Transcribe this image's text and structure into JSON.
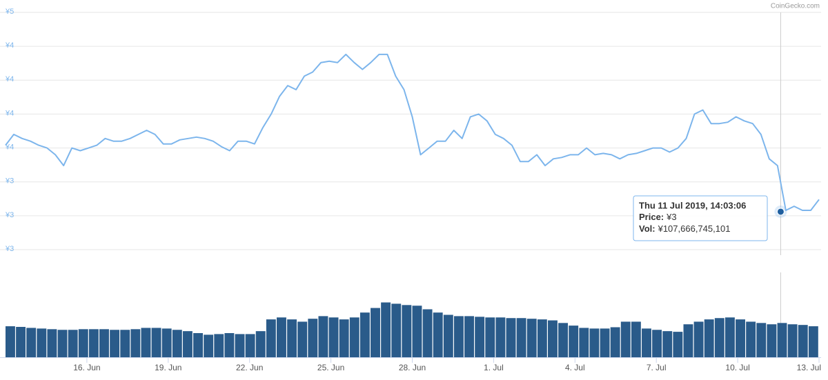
{
  "watermark": "CoinGecko.com",
  "chart_data": [
    {
      "type": "line",
      "color": "#7cb5ec",
      "grid": true,
      "xlim": [
        "2019-06-13T00:00:00",
        "2019-07-13T00:00:00"
      ],
      "ylim": [
        2.75,
        4.5
      ],
      "yticks": [
        {
          "value": 4.5,
          "label": "¥5"
        },
        {
          "value": 4.25,
          "label": "¥4"
        },
        {
          "value": 4.0,
          "label": "¥4"
        },
        {
          "value": 3.75,
          "label": "¥4"
        },
        {
          "value": 3.5,
          "label": "¥4"
        },
        {
          "value": 3.25,
          "label": "¥3"
        },
        {
          "value": 3.0,
          "label": "¥3"
        },
        {
          "value": 2.75,
          "label": "¥3"
        }
      ],
      "values": [
        3.52,
        3.6,
        3.57,
        3.55,
        3.52,
        3.5,
        3.45,
        3.37,
        3.5,
        3.48,
        3.5,
        3.52,
        3.57,
        3.55,
        3.55,
        3.57,
        3.6,
        3.63,
        3.6,
        3.53,
        3.53,
        3.56,
        3.57,
        3.58,
        3.57,
        3.55,
        3.51,
        3.48,
        3.55,
        3.55,
        3.53,
        3.65,
        3.75,
        3.88,
        3.96,
        3.93,
        4.03,
        4.06,
        4.13,
        4.14,
        4.13,
        4.19,
        4.13,
        4.08,
        4.13,
        4.19,
        4.19,
        4.03,
        3.93,
        3.73,
        3.45,
        3.5,
        3.55,
        3.55,
        3.63,
        3.57,
        3.73,
        3.75,
        3.7,
        3.6,
        3.57,
        3.52,
        3.4,
        3.4,
        3.45,
        3.37,
        3.42,
        3.43,
        3.45,
        3.45,
        3.5,
        3.45,
        3.46,
        3.45,
        3.42,
        3.45,
        3.46,
        3.48,
        3.5,
        3.5,
        3.47,
        3.5,
        3.57,
        3.75,
        3.78,
        3.68,
        3.68,
        3.69,
        3.73,
        3.7,
        3.68,
        3.6,
        3.42,
        3.37,
        3.04,
        3.07,
        3.04,
        3.04,
        3.12
      ],
      "hover": {
        "x": "2019-07-11T14:03:06",
        "value": 3.03
      },
      "tooltip": {
        "date": "Thu 11 Jul 2019, 14:03:06",
        "price_label": "Price:",
        "price": "¥3",
        "vol_label": "Vol:",
        "vol": "¥107,666,745,101"
      }
    },
    {
      "type": "bar",
      "color": "#2a5b8a",
      "xlim": [
        "2019-06-13T00:00:00",
        "2019-07-13T00:00:00"
      ],
      "ylim": [
        0,
        260000000000.0
      ],
      "xticks": [
        {
          "value": "2019-06-16T00:00:00",
          "label": "16. Jun"
        },
        {
          "value": "2019-06-19T00:00:00",
          "label": "19. Jun"
        },
        {
          "value": "2019-06-22T00:00:00",
          "label": "22. Jun"
        },
        {
          "value": "2019-06-25T00:00:00",
          "label": "25. Jun"
        },
        {
          "value": "2019-06-28T00:00:00",
          "label": "28. Jun"
        },
        {
          "value": "2019-07-01T00:00:00",
          "label": "1. Jul"
        },
        {
          "value": "2019-07-04T00:00:00",
          "label": "4. Jul"
        },
        {
          "value": "2019-07-07T00:00:00",
          "label": "7. Jul"
        },
        {
          "value": "2019-07-10T00:00:00",
          "label": "10. Jul"
        },
        {
          "value": "2019-07-13T00:00:00",
          "label": "13. Jul"
        }
      ],
      "values": [
        95000000000.0,
        93000000000.0,
        90000000000.0,
        88000000000.0,
        86000000000.0,
        84000000000.0,
        84000000000.0,
        86000000000.0,
        86000000000.0,
        86000000000.0,
        84000000000.0,
        84000000000.0,
        86000000000.0,
        90000000000.0,
        90000000000.0,
        88000000000.0,
        84000000000.0,
        80000000000.0,
        74000000000.0,
        69000000000.0,
        71000000000.0,
        74000000000.0,
        71000000000.0,
        71000000000.0,
        80000000000.0,
        116000000000.0,
        122000000000.0,
        116000000000.0,
        109000000000.0,
        118000000000.0,
        126000000000.0,
        122000000000.0,
        116000000000.0,
        122000000000.0,
        137000000000.0,
        151000000000.0,
        168000000000.0,
        164000000000.0,
        160000000000.0,
        158000000000.0,
        147000000000.0,
        137000000000.0,
        130000000000.0,
        126000000000.0,
        126000000000.0,
        124000000000.0,
        122000000000.0,
        122000000000.0,
        120000000000.0,
        120000000000.0,
        118000000000.0,
        116000000000.0,
        113000000000.0,
        105000000000.0,
        97000000000.0,
        90000000000.0,
        88000000000.0,
        88000000000.0,
        92000000000.0,
        109000000000.0,
        109000000000.0,
        88000000000.0,
        84000000000.0,
        80000000000.0,
        78000000000.0,
        101000000000.0,
        109000000000.0,
        116000000000.0,
        120000000000.0,
        122000000000.0,
        116000000000.0,
        109000000000.0,
        105000000000.0,
        101000000000.0,
        105000000000.0,
        101000000000.0,
        99000000000.0,
        95000000000.0
      ]
    }
  ]
}
